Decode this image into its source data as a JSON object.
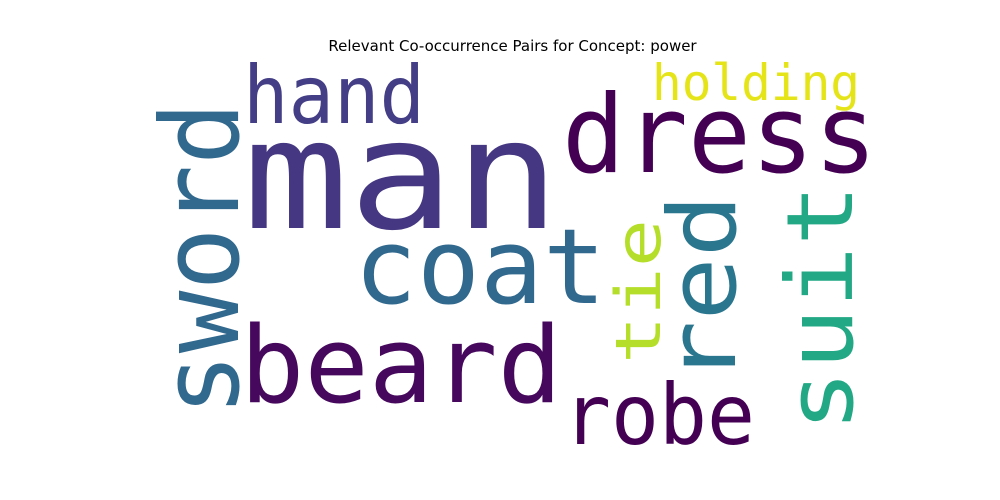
{
  "title": "Relevant Co-occurrence Pairs for Concept: power",
  "words": [
    {
      "text": "man",
      "color": "#453781",
      "orientation": "horizontal"
    },
    {
      "text": "dress",
      "color": "#440154",
      "orientation": "horizontal"
    },
    {
      "text": "hand",
      "color": "#433e85",
      "orientation": "horizontal"
    },
    {
      "text": "holding",
      "color": "#e5e419",
      "orientation": "horizontal"
    },
    {
      "text": "sword",
      "color": "#31688e",
      "orientation": "vertical"
    },
    {
      "text": "coat",
      "color": "#31688e",
      "orientation": "horizontal"
    },
    {
      "text": "beard",
      "color": "#46085c",
      "orientation": "horizontal"
    },
    {
      "text": "tie",
      "color": "#b5de2b",
      "orientation": "vertical"
    },
    {
      "text": "red",
      "color": "#2a768e",
      "orientation": "vertical"
    },
    {
      "text": "suit",
      "color": "#22a884",
      "orientation": "vertical"
    },
    {
      "text": "robe",
      "color": "#440154",
      "orientation": "horizontal"
    }
  ]
}
